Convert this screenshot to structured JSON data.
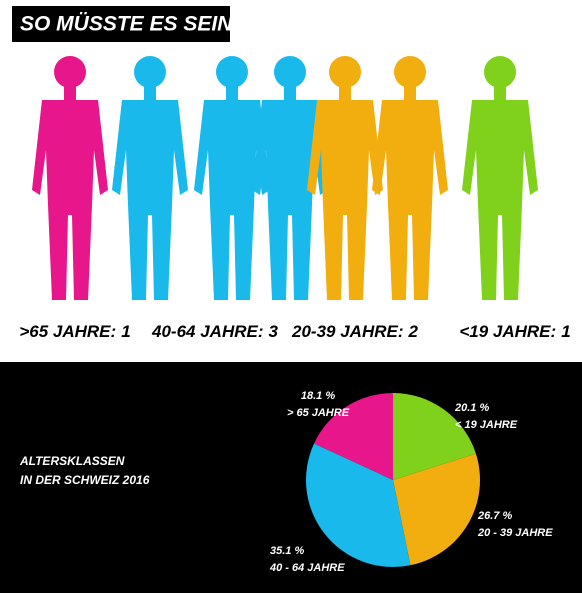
{
  "chart_data": [
    {
      "type": "pictogram",
      "title": "SO MÜSSTE ES SEIN",
      "categories": [
        ">65 JAHRE:",
        "40-64 JAHRE:",
        "20-39 JAHRE:",
        "<19 JAHRE:"
      ],
      "values": [
        1,
        3,
        2,
        1
      ],
      "colors": [
        "#e8168b",
        "#19b9ec",
        "#f2ad0f",
        "#7fd11b"
      ]
    },
    {
      "type": "pie",
      "title": [
        "ALTERSKLASSEN",
        "IN DER SCHWEIZ 2016"
      ],
      "categories": [
        "< 19 JAHRE",
        "20 - 39 JAHRE",
        "40 - 64 JAHRE",
        "> 65 JAHRE"
      ],
      "values": [
        20.1,
        26.7,
        35.1,
        18.1
      ],
      "value_labels": [
        "20.1 %",
        "26.7 %",
        "35.1 %",
        "18.1 %"
      ],
      "colors": [
        "#7fd11b",
        "#f2ad0f",
        "#19b9ec",
        "#e8168b"
      ]
    }
  ]
}
